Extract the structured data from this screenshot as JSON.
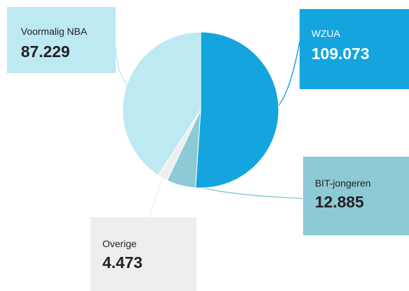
{
  "chart_data": {
    "type": "pie",
    "categories": [
      "WZUA",
      "BIT-jongeren",
      "Overige",
      "Voormalig NBA"
    ],
    "values": [
      109073,
      12885,
      4473,
      87229
    ],
    "value_labels": [
      "109.073",
      "12.885",
      "4.473",
      "87.229"
    ],
    "colors": [
      "#14a5de",
      "#8ccad6",
      "#eeeeee",
      "#bde9f3"
    ]
  }
}
